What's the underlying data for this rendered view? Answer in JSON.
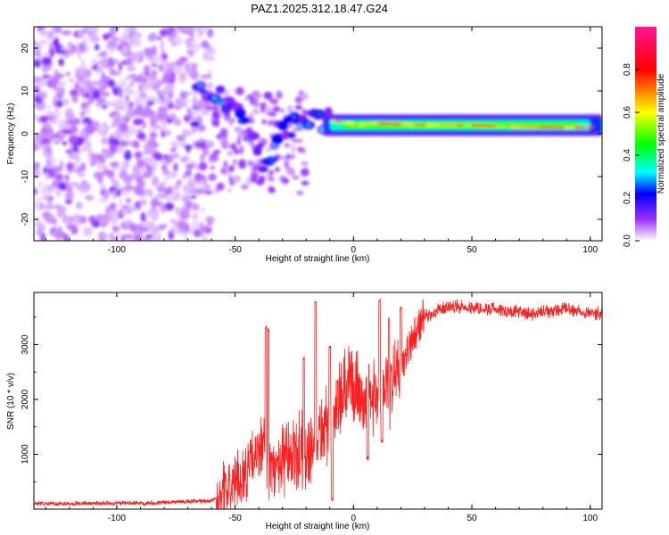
{
  "chart_data": [
    {
      "type": "heatmap",
      "title": "PAZ1.2025.312.18.47.G24",
      "xlabel": "Height of straight line (km)",
      "ylabel": "Frequency (Hz)",
      "xlim": [
        -135,
        105
      ],
      "ylim": [
        -25,
        25
      ],
      "x_ticks": [
        -100,
        -50,
        0,
        50,
        100
      ],
      "y_ticks": [
        -20,
        -10,
        0,
        10,
        20
      ],
      "colorbar": {
        "label": "Normalized spectral amplitude",
        "range": [
          0.0,
          1.0
        ],
        "ticks": [
          0.0,
          0.2,
          0.4,
          0.6,
          0.8
        ],
        "tick_labels": [
          "0.0",
          "0.2",
          "0.4",
          "0.6",
          "0.8"
        ],
        "stops": [
          {
            "value": 0.0,
            "color": "#ffffff"
          },
          {
            "value": 0.1,
            "color": "#9b30ff"
          },
          {
            "value": 0.22,
            "color": "#0000ff"
          },
          {
            "value": 0.32,
            "color": "#00ffff"
          },
          {
            "value": 0.45,
            "color": "#00ff00"
          },
          {
            "value": 0.6,
            "color": "#ffff00"
          },
          {
            "value": 0.8,
            "color": "#ff0000"
          },
          {
            "value": 1.0,
            "color": "#ff1493"
          }
        ]
      },
      "ridge": [
        {
          "x": -66,
          "f": 12
        },
        {
          "x": -58,
          "f": 9
        },
        {
          "x": -52,
          "f": 6
        },
        {
          "x": -46,
          "f": 3
        },
        {
          "x": -41,
          "f": -2
        },
        {
          "x": -38,
          "f": -7
        },
        {
          "x": -35,
          "f": -4
        },
        {
          "x": -30,
          "f": 1
        },
        {
          "x": -25,
          "f": 2
        },
        {
          "x": -20,
          "f": 2
        },
        {
          "x": -14,
          "f": 3
        },
        {
          "x": -8,
          "f": 3
        },
        {
          "x": 0,
          "f": 2
        },
        {
          "x": 10,
          "f": 2.5
        },
        {
          "x": 25,
          "f": 2
        },
        {
          "x": 50,
          "f": 2
        },
        {
          "x": 75,
          "f": 1.5
        },
        {
          "x": 103,
          "f": 1.5
        }
      ]
    },
    {
      "type": "line",
      "xlabel": "Height of straight line (km)",
      "ylabel": "SNR (10 * v/v)",
      "xlim": [
        -135,
        105
      ],
      "ylim": [
        0,
        3950
      ],
      "x_ticks": [
        -100,
        -50,
        0,
        50,
        100
      ],
      "y_ticks": [
        1000,
        2000,
        3000
      ],
      "color": "#ff2020",
      "envelope": [
        {
          "x": -135,
          "snr": 100
        },
        {
          "x": -90,
          "snr": 110
        },
        {
          "x": -60,
          "snr": 150
        },
        {
          "x": -52,
          "snr": 400
        },
        {
          "x": -45,
          "snr": 700
        },
        {
          "x": -38,
          "snr": 1200
        },
        {
          "x": -36,
          "snr": 700
        },
        {
          "x": -30,
          "snr": 800
        },
        {
          "x": -20,
          "snr": 1100
        },
        {
          "x": -10,
          "snr": 1600
        },
        {
          "x": -5,
          "snr": 2000
        },
        {
          "x": 0,
          "snr": 2300
        },
        {
          "x": 5,
          "snr": 2000
        },
        {
          "x": 10,
          "snr": 2100
        },
        {
          "x": 15,
          "snr": 2200
        },
        {
          "x": 20,
          "snr": 2600
        },
        {
          "x": 25,
          "snr": 3100
        },
        {
          "x": 30,
          "snr": 3500
        },
        {
          "x": 40,
          "snr": 3700
        },
        {
          "x": 60,
          "snr": 3650
        },
        {
          "x": 75,
          "snr": 3550
        },
        {
          "x": 90,
          "snr": 3650
        },
        {
          "x": 105,
          "snr": 3550
        }
      ],
      "spikes": [
        {
          "x": -37,
          "snr": 3350
        },
        {
          "x": -36,
          "snr": 3300
        },
        {
          "x": -16,
          "snr": 3800
        },
        {
          "x": -21,
          "snr": 2800
        },
        {
          "x": -10,
          "snr": 3000
        },
        {
          "x": 11,
          "snr": 3850
        },
        {
          "x": 6,
          "snr": 3300
        },
        {
          "x": 15,
          "snr": 3500
        },
        {
          "x": 20,
          "snr": 3700
        }
      ],
      "dips": [
        {
          "x": 6,
          "snr": 900
        },
        {
          "x": 12,
          "snr": 1200
        },
        {
          "x": -9,
          "snr": 150
        }
      ]
    }
  ]
}
